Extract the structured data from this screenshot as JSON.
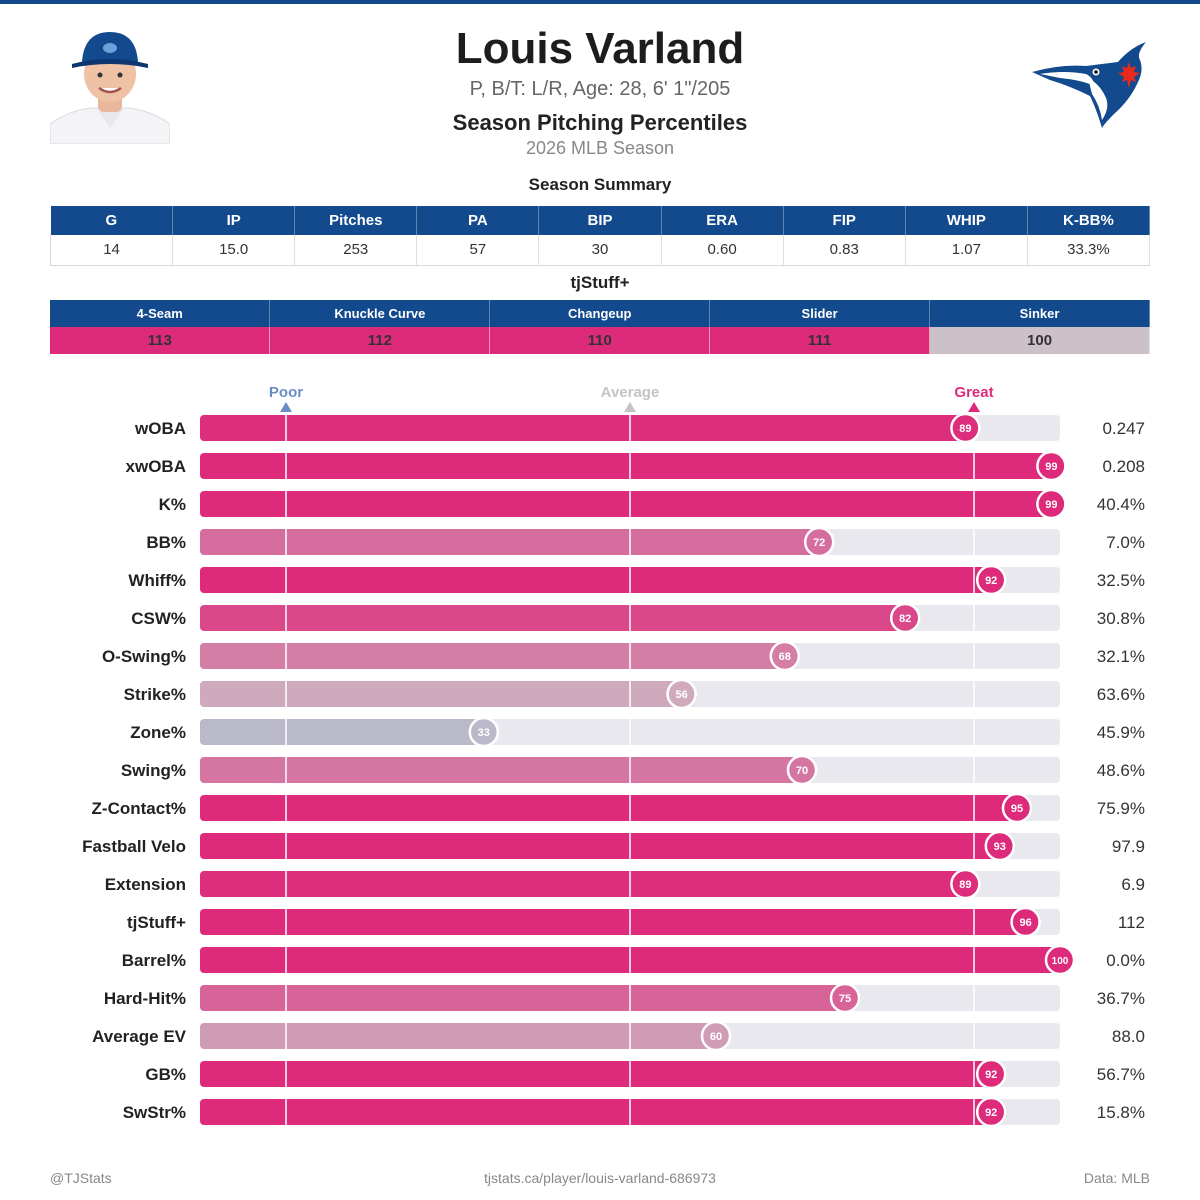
{
  "player": {
    "name": "Louis Varland",
    "bio": "P, B/T: L/R, Age: 28, 6' 1\"/205"
  },
  "title": "Season Pitching Percentiles",
  "subtitle": "2026 MLB Season",
  "summary": {
    "title": "Season Summary",
    "headers": [
      "G",
      "IP",
      "Pitches",
      "PA",
      "BIP",
      "ERA",
      "FIP",
      "WHIP",
      "K-BB%"
    ],
    "values": [
      "14",
      "15.0",
      "253",
      "57",
      "30",
      "0.60",
      "0.83",
      "1.07",
      "33.3%"
    ]
  },
  "tjstuff": {
    "title": "tjStuff+",
    "headers": [
      "4-Seam",
      "Knuckle Curve",
      "Changeup",
      "Slider",
      "Sinker"
    ],
    "values": [
      "113",
      "112",
      "110",
      "111",
      "100"
    ],
    "colors": [
      "#dd2a7b",
      "#dd2a7b",
      "#dd2a7b",
      "#dd2a7b",
      "#ccc1c8"
    ]
  },
  "chart_data": {
    "type": "bar",
    "orientation": "horizontal",
    "xlim": [
      0,
      100
    ],
    "reference_labels": [
      {
        "label": "Poor",
        "value": 10,
        "color": "#6b8cc7"
      },
      {
        "label": "Average",
        "value": 50,
        "color": "#c4c4c4"
      },
      {
        "label": "Great",
        "value": 90,
        "color": "#dd2a7b"
      }
    ],
    "categories": [
      "wOBA",
      "xwOBA",
      "K%",
      "BB%",
      "Whiff%",
      "CSW%",
      "O-Swing%",
      "Strike%",
      "Zone%",
      "Swing%",
      "Z-Contact%",
      "Fastball Velo",
      "Extension",
      "tjStuff+",
      "Barrel%",
      "Hard-Hit%",
      "Average EV",
      "GB%",
      "SwStr%"
    ],
    "percentiles": [
      89,
      99,
      99,
      72,
      92,
      82,
      68,
      56,
      33,
      70,
      95,
      93,
      89,
      96,
      100,
      75,
      60,
      92,
      92
    ],
    "values": [
      "0.247",
      "0.208",
      "40.4%",
      "7.0%",
      "32.5%",
      "30.8%",
      "32.1%",
      "63.6%",
      "45.9%",
      "48.6%",
      "75.9%",
      "97.9",
      "6.9",
      "112",
      "0.0%",
      "36.7%",
      "88.0",
      "56.7%",
      "15.8%"
    ],
    "colors": {
      "low": "#9fadca",
      "mid": "#ccc1c8",
      "high": "#dd2a7b",
      "track": "#e8e8ee"
    }
  },
  "footer": {
    "left": "@TJStats",
    "center": "tjstats.ca/player/louis-varland-686973",
    "right": "Data: MLB"
  },
  "brand": {
    "primary": "#134a8e",
    "accent": "#dd2a7b"
  }
}
